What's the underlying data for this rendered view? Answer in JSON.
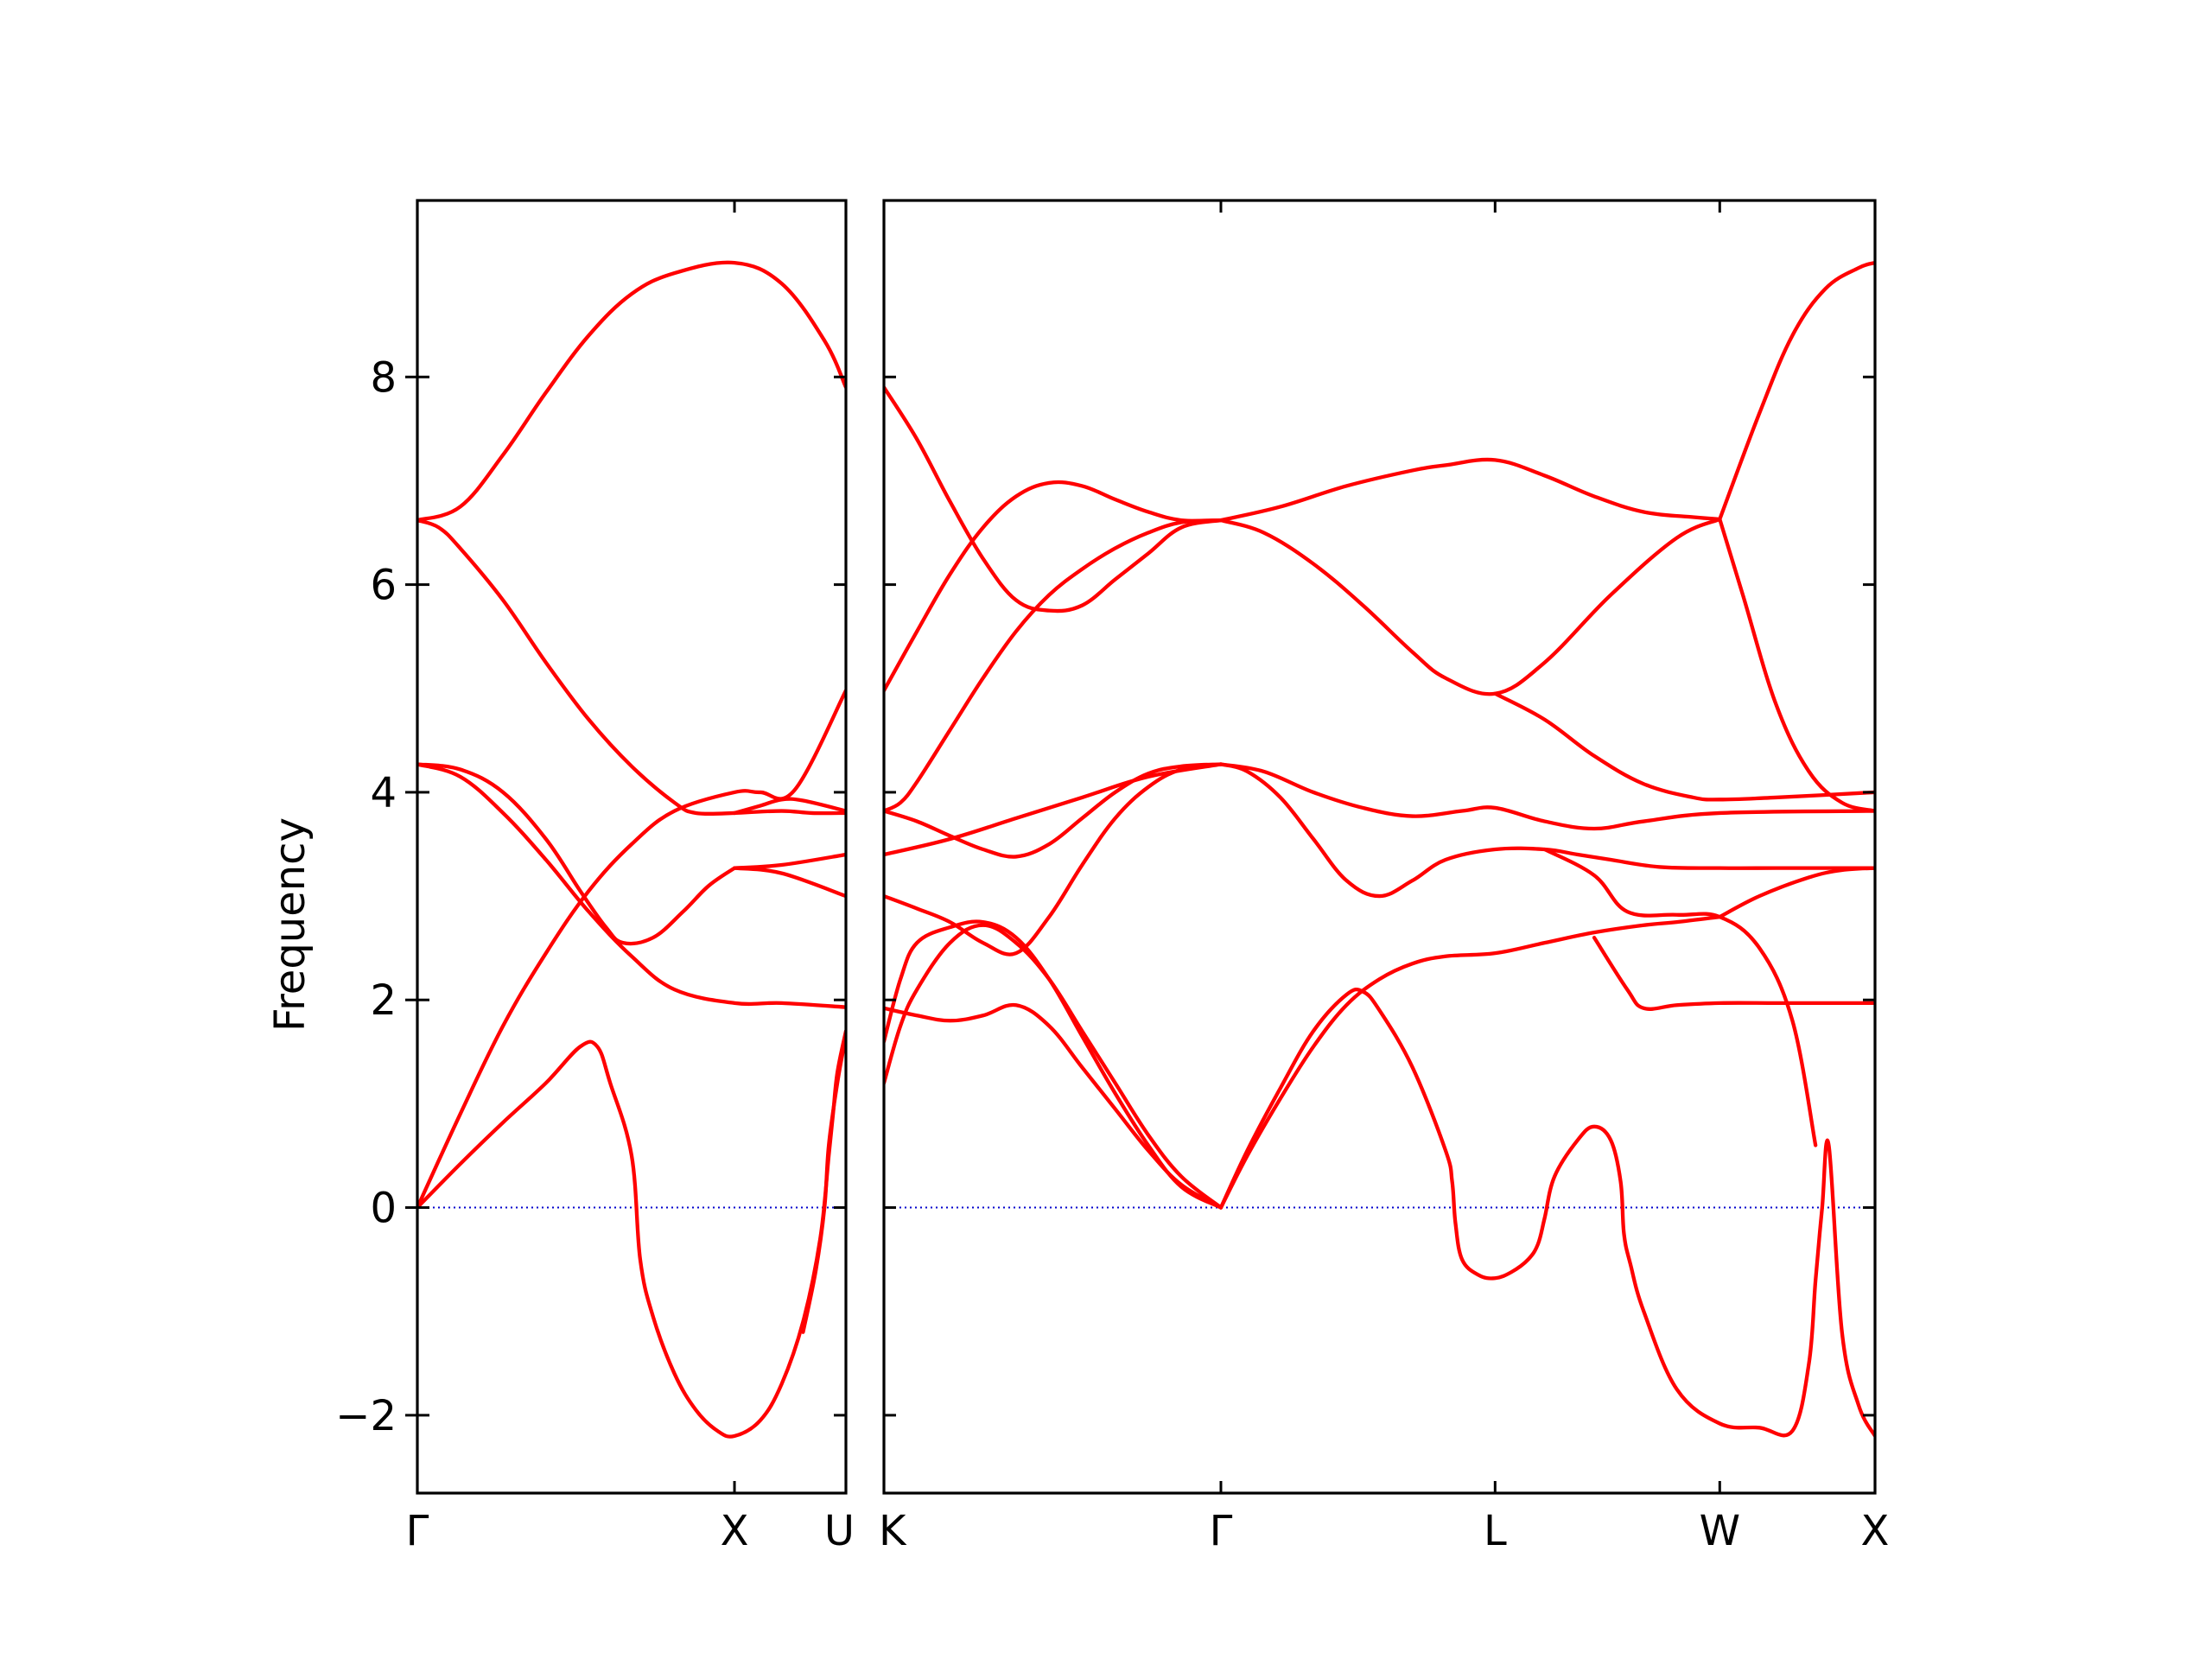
{
  "chart_data": {
    "type": "line",
    "title": "",
    "ylabel": "Frequency",
    "ylim": [
      -2.75,
      9.7
    ],
    "yticks": [
      -2,
      0,
      2,
      4,
      6,
      8
    ],
    "ytick_labels": [
      "−2",
      "0",
      "2",
      "4",
      "6",
      "8"
    ],
    "colors": {
      "band": "#ff0000",
      "zero_line": "#0000cc",
      "axes": "#000000"
    },
    "panels": [
      {
        "x_range": [
          0,
          1
        ],
        "xticks": [
          {
            "x": 0,
            "label": "Γ"
          },
          {
            "x": 0.74,
            "label": "X"
          },
          {
            "x": 1,
            "label": "U"
          }
        ],
        "series": [
          {
            "x": [
              0,
              0.1,
              0.2,
              0.3,
              0.4,
              0.5,
              0.6,
              0.74,
              0.85,
              0.95,
              1
            ],
            "y": [
              6.62,
              6.75,
              7.25,
              7.85,
              8.4,
              8.8,
              9.0,
              9.1,
              8.9,
              8.35,
              7.9
            ]
          },
          {
            "x": [
              0,
              0.05,
              0.1,
              0.2,
              0.3,
              0.4,
              0.5,
              0.6,
              0.65,
              0.74
            ],
            "y": [
              6.62,
              6.55,
              6.35,
              5.85,
              5.25,
              4.7,
              4.25,
              3.9,
              3.8,
              3.8
            ]
          },
          {
            "x": [
              0.74,
              0.85,
              0.92,
              1
            ],
            "y": [
              3.8,
              3.82,
              3.8,
              3.8
            ]
          },
          {
            "x": [
              0,
              0.1,
              0.2,
              0.3,
              0.38,
              0.44,
              0.48,
              0.55,
              0.62,
              0.68,
              0.74
            ],
            "y": [
              4.27,
              4.22,
              4.0,
              3.55,
              3.05,
              2.7,
              2.55,
              2.6,
              2.85,
              3.1,
              3.27
            ]
          },
          {
            "x": [
              0,
              0.1,
              0.2,
              0.3,
              0.4,
              0.5,
              0.6,
              0.74,
              0.85,
              1
            ],
            "y": [
              4.27,
              4.15,
              3.8,
              3.35,
              2.85,
              2.42,
              2.1,
              1.97,
              1.97,
              1.93
            ]
          },
          {
            "x": [
              0,
              0.1,
              0.2,
              0.3,
              0.4,
              0.5,
              0.6,
              0.74,
              0.8,
              0.88,
              1
            ],
            "y": [
              0,
              0.9,
              1.75,
              2.45,
              3.05,
              3.5,
              3.82,
              4.0,
              4.0,
              4.02,
              4.98
            ]
          },
          {
            "x": [
              0.74,
              0.8,
              0.85,
              0.9,
              1
            ],
            "y": [
              3.8,
              3.87,
              3.93,
              3.92,
              3.82
            ]
          },
          {
            "x": [
              0.74,
              0.85,
              1
            ],
            "y": [
              3.27,
              3.22,
              3.0
            ]
          },
          {
            "x": [
              0.74,
              0.85,
              1
            ],
            "y": [
              3.27,
              3.3,
              3.4
            ]
          },
          {
            "x": [
              0,
              0.1,
              0.2,
              0.3,
              0.38,
              0.42,
              0.45,
              0.5,
              0.52,
              0.55,
              0.6,
              0.65,
              0.7,
              0.74,
              0.8,
              0.85,
              0.9,
              0.94,
              0.96,
              0.97,
              0.98,
              1
            ],
            "y": [
              0,
              0.42,
              0.82,
              1.2,
              1.55,
              1.55,
              1.2,
              0.5,
              -0.5,
              -1.05,
              -1.6,
              -1.95,
              -2.15,
              -2.2,
              -2.05,
              -1.7,
              -1.1,
              -0.3,
              0.5,
              0.9,
              1.3,
              1.7
            ]
          },
          {
            "x": [
              0.9,
              0.93,
              0.95,
              0.96,
              0.98,
              1
            ],
            "y": [
              -1.2,
              -0.6,
              0.0,
              0.6,
              1.2,
              1.65
            ]
          }
        ]
      },
      {
        "x_range": [
          0,
          3.0
        ],
        "xticks": [
          {
            "x": 0,
            "label": "K"
          },
          {
            "x": 1.02,
            "label": "Γ"
          },
          {
            "x": 1.85,
            "label": "L"
          },
          {
            "x": 2.53,
            "label": "W"
          },
          {
            "x": 3.0,
            "label": "X"
          }
        ],
        "series": [
          {
            "x": [
              0,
              0.1,
              0.2,
              0.3,
              0.4,
              0.5,
              0.6,
              0.7,
              0.8,
              0.9,
              1.02
            ],
            "y": [
              7.9,
              7.4,
              6.8,
              6.25,
              5.85,
              5.75,
              5.8,
              6.05,
              6.3,
              6.55,
              6.62
            ]
          },
          {
            "x": [
              0,
              0.1,
              0.2,
              0.3,
              0.4,
              0.5,
              0.6,
              0.7,
              0.8,
              0.9,
              1.02
            ],
            "y": [
              4.98,
              5.55,
              6.1,
              6.55,
              6.85,
              6.98,
              6.95,
              6.82,
              6.7,
              6.62,
              6.62
            ]
          },
          {
            "x": [
              0,
              0.05,
              0.1,
              0.2,
              0.3,
              0.4,
              0.5,
              0.6,
              0.7,
              0.8,
              0.9,
              1.02
            ],
            "y": [
              3.82,
              3.9,
              4.1,
              4.6,
              5.1,
              5.55,
              5.9,
              6.15,
              6.35,
              6.5,
              6.6,
              6.62
            ]
          },
          {
            "x": [
              1.02,
              1.2,
              1.4,
              1.6,
              1.7,
              1.85,
              2.0,
              2.15,
              2.3,
              2.45,
              2.53
            ],
            "y": [
              6.62,
              6.75,
              6.95,
              7.1,
              7.15,
              7.2,
              7.05,
              6.85,
              6.7,
              6.65,
              6.63
            ]
          },
          {
            "x": [
              1.02,
              1.15,
              1.3,
              1.45,
              1.6,
              1.7,
              1.85,
              2.0,
              2.2,
              2.4,
              2.53
            ],
            "y": [
              6.62,
              6.5,
              6.2,
              5.8,
              5.35,
              5.1,
              4.95,
              5.25,
              5.9,
              6.45,
              6.63
            ]
          },
          {
            "x": [
              1.85,
              2.0,
              2.15,
              2.3,
              2.45,
              2.53,
              2.7,
              3.0
            ],
            "y": [
              4.95,
              4.7,
              4.35,
              4.08,
              3.95,
              3.93,
              3.95,
              4.0
            ]
          },
          {
            "x": [
              2.53,
              2.6,
              2.7,
              2.8,
              2.9,
              3.0
            ],
            "y": [
              6.63,
              5.9,
              4.85,
              4.2,
              3.9,
              3.82
            ]
          },
          {
            "x": [
              2.53,
              2.65,
              2.75,
              2.85,
              2.95,
              3.0
            ],
            "y": [
              6.63,
              7.65,
              8.4,
              8.85,
              9.05,
              9.1
            ]
          },
          {
            "x": [
              0,
              0.2,
              0.4,
              0.6,
              0.8,
              1.02
            ],
            "y": [
              3.4,
              3.55,
              3.75,
              3.95,
              4.15,
              4.27
            ]
          },
          {
            "x": [
              0,
              0.1,
              0.2,
              0.3,
              0.4,
              0.5,
              0.6,
              0.7,
              0.8,
              0.9,
              1.02
            ],
            "y": [
              3.82,
              3.72,
              3.58,
              3.45,
              3.38,
              3.5,
              3.75,
              4.0,
              4.18,
              4.25,
              4.27
            ]
          },
          {
            "x": [
              1.02,
              1.15,
              1.3,
              1.45,
              1.6,
              1.75,
              1.85,
              2.0,
              2.15,
              2.3,
              2.53,
              3.0
            ],
            "y": [
              4.27,
              4.2,
              4.0,
              3.85,
              3.77,
              3.82,
              3.85,
              3.72,
              3.65,
              3.72,
              3.8,
              3.82
            ]
          },
          {
            "x": [
              1.02,
              1.1,
              1.2,
              1.3,
              1.4,
              1.5,
              1.6,
              1.7,
              1.85,
              2.0,
              2.1,
              2.2,
              2.35,
              2.53,
              2.7,
              2.85,
              3.0
            ],
            "y": [
              4.27,
              4.2,
              3.95,
              3.55,
              3.15,
              3.0,
              3.15,
              3.35,
              3.45,
              3.45,
              3.4,
              3.35,
              3.28,
              3.27,
              3.27,
              3.27,
              3.27
            ]
          },
          {
            "x": [
              2.53,
              2.65,
              2.8,
              2.9,
              3.0
            ],
            "y": [
              2.8,
              3.0,
              3.18,
              3.25,
              3.27
            ]
          },
          {
            "x": [
              0,
              0.1,
              0.2,
              0.3,
              0.4,
              0.5,
              0.6,
              0.7,
              0.8,
              0.9,
              1.02
            ],
            "y": [
              3.0,
              2.88,
              2.75,
              2.55,
              2.45,
              2.8,
              3.3,
              3.75,
              4.05,
              4.22,
              4.27
            ]
          },
          {
            "x": [
              0,
              0.05,
              0.1,
              0.2,
              0.3,
              0.4,
              0.5,
              0.6,
              0.7,
              0.8,
              0.9,
              1.02
            ],
            "y": [
              1.6,
              2.2,
              2.55,
              2.7,
              2.75,
              2.6,
              2.2,
              1.65,
              1.1,
              0.6,
              0.2,
              0.0
            ]
          },
          {
            "x": [
              0,
              0.05,
              0.1,
              0.2,
              0.3,
              0.4,
              0.5,
              0.6,
              0.7,
              0.8,
              0.9,
              1.02
            ],
            "y": [
              1.2,
              1.75,
              2.1,
              2.55,
              2.72,
              2.55,
              2.2,
              1.7,
              1.2,
              0.7,
              0.3,
              0.0
            ]
          },
          {
            "x": [
              0,
              0.1,
              0.2,
              0.3,
              0.4,
              0.5,
              0.6,
              0.7,
              0.8,
              0.9,
              1.02
            ],
            "y": [
              1.92,
              1.85,
              1.8,
              1.85,
              1.95,
              1.75,
              1.35,
              0.95,
              0.55,
              0.22,
              0.0
            ]
          },
          {
            "x": [
              1.02,
              1.1,
              1.2,
              1.3,
              1.4,
              1.5,
              1.6,
              1.7,
              1.85,
              2.0,
              2.15,
              2.3,
              2.4,
              2.53
            ],
            "y": [
              0.0,
              0.5,
              1.05,
              1.55,
              1.95,
              2.2,
              2.35,
              2.42,
              2.45,
              2.55,
              2.65,
              2.72,
              2.75,
              2.8
            ]
          },
          {
            "x": [
              1.02,
              1.1,
              1.2,
              1.3,
              1.4,
              1.45,
              1.5,
              1.6,
              1.7,
              1.72,
              1.73,
              1.75,
              1.8,
              1.85,
              1.9,
              1.95,
              1.98,
              2.0,
              2.03,
              2.1,
              2.15,
              2.2,
              2.23,
              2.24,
              2.26,
              2.3,
              2.4,
              2.53,
              2.65,
              2.75,
              2.8,
              2.82,
              2.84,
              2.86,
              2.9,
              2.95,
              3.0
            ],
            "y": [
              0.0,
              0.55,
              1.15,
              1.7,
              2.05,
              2.08,
              1.9,
              1.35,
              0.55,
              0.25,
              -0.15,
              -0.5,
              -0.65,
              -0.68,
              -0.62,
              -0.5,
              -0.35,
              -0.1,
              0.3,
              0.65,
              0.78,
              0.65,
              0.25,
              -0.25,
              -0.55,
              -1.0,
              -1.75,
              -2.08,
              -2.12,
              -2.15,
              -1.5,
              -0.7,
              0.0,
              0.6,
              -1.2,
              -1.9,
              -2.2
            ]
          },
          {
            "x": [
              2.15,
              2.25,
              2.3,
              2.4,
              2.53,
              2.7,
              2.85,
              3.0
            ],
            "y": [
              2.6,
              2.1,
              1.92,
              1.95,
              1.97,
              1.97,
              1.97,
              1.97
            ]
          },
          {
            "x": [
              2.0,
              2.15,
              2.25,
              2.4,
              2.53,
              2.65,
              2.75,
              2.82
            ],
            "y": [
              3.45,
              3.2,
              2.85,
              2.82,
              2.8,
              2.5,
              1.8,
              0.6
            ]
          }
        ]
      }
    ]
  }
}
